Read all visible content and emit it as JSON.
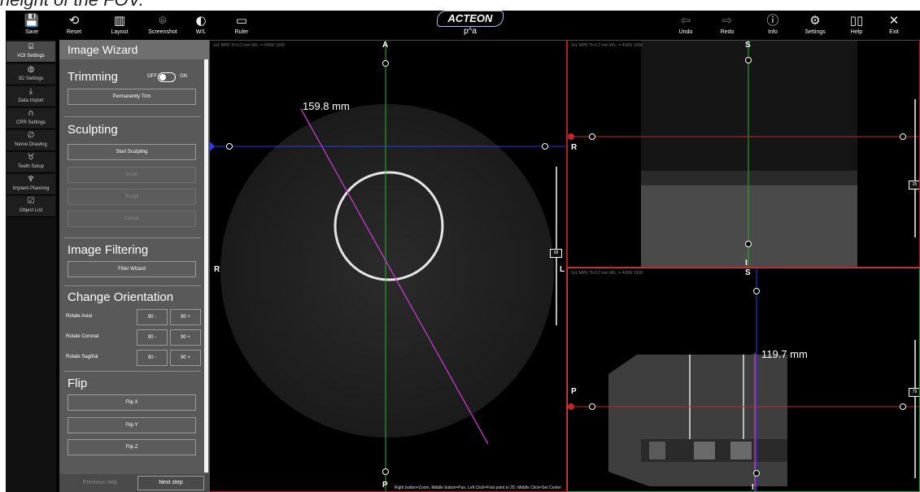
{
  "caption": "height of the FOV.",
  "toolbar": {
    "left": [
      {
        "icon": "💾",
        "label": "Save"
      },
      {
        "icon": "⟲",
        "label": "Reset"
      },
      {
        "icon": "▥",
        "label": "Layout"
      },
      {
        "icon": "⌾",
        "label": "Screenshot"
      },
      {
        "icon": "◐",
        "label": "W/L"
      },
      {
        "icon": "▭",
        "label": "Ruler"
      }
    ],
    "right": [
      {
        "icon": "⇦",
        "label": "Undo"
      },
      {
        "icon": "⇨",
        "label": "Redo"
      },
      {
        "icon": "ⓘ",
        "label": "Info"
      },
      {
        "icon": "⚙",
        "label": "Settings"
      },
      {
        "icon": "▯▯",
        "label": "Help"
      },
      {
        "icon": "✕",
        "label": "Exit"
      }
    ]
  },
  "logo": "ACTEON",
  "patient": "p^a",
  "sidebar": [
    {
      "icon": "⌸",
      "label": "VOI Settings"
    },
    {
      "icon": "◍",
      "label": "3D Settings"
    },
    {
      "icon": "⤓",
      "label": "Data Import"
    },
    {
      "icon": "∩",
      "label": "CPR Settings"
    },
    {
      "icon": "∅",
      "label": "Nerve Drawing"
    },
    {
      "icon": "♉",
      "label": "Teeth Setup"
    },
    {
      "icon": "♆",
      "label": "Implant Planning"
    },
    {
      "icon": "☑",
      "label": "Object List"
    }
  ],
  "wizard": {
    "title": "Image Wizard",
    "trimming": {
      "title": "Trimming",
      "off": "OFF",
      "on": "ON",
      "button": "Permanently Trim"
    },
    "sculpting": {
      "title": "Sculpting",
      "start": "Start Sculpting",
      "invert": "Invert",
      "sculpt": "Sculpt",
      "cancel": "Cancel"
    },
    "filtering": {
      "title": "Image Filtering",
      "button": "Filter Wizard"
    },
    "orientation": {
      "title": "Change Orientation",
      "rows": [
        {
          "label": "Rotate Axial",
          "minus": "90 -",
          "plus": "90 +"
        },
        {
          "label": "Rotate Coronal",
          "minus": "90 -",
          "plus": "90 +"
        },
        {
          "label": "Rotate Sagittal",
          "minus": "90 -",
          "plus": "90 +"
        }
      ]
    },
    "flip": {
      "title": "Flip",
      "x": "Flip X",
      "y": "Flip Y",
      "z": "Flip Z"
    },
    "previous": "Previous step",
    "next": "Next step"
  },
  "views": {
    "axial": {
      "info": "1x1   MPR   Th:0.2 mm   W/L := 4000/ 1000",
      "top": "A",
      "bottom": "P",
      "left": "R",
      "right": "L",
      "measure": "159.8 mm",
      "wl": "68"
    },
    "sagittal": {
      "info": "1x1   MPR   Th:0.2 mm   W/L := 4000/ 1000",
      "top": "S",
      "left": "R",
      "bottom": "I",
      "wl": "25"
    },
    "coronal": {
      "info": "1x1   MPR   Th:0.2 mm   W/L := 4000/ 1000",
      "top": "S",
      "left": "P",
      "bottom": "I",
      "measure": "119.7 mm",
      "wl": "79"
    }
  },
  "status": "Right button=Zoom, Middle button=Pan, Left Click=Find point in 2D, Middle Click=Set Center"
}
